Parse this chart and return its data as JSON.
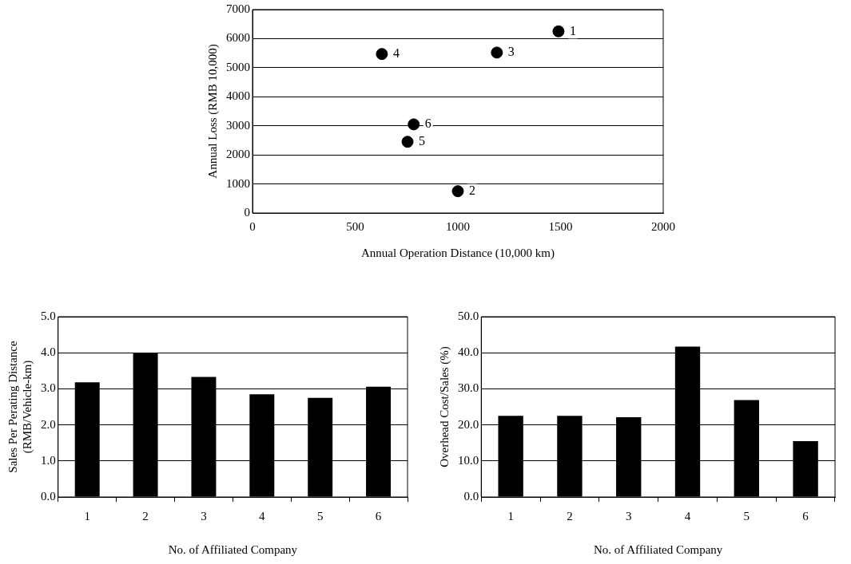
{
  "chart_data": [
    {
      "type": "scatter",
      "xlabel": "Annual Operation Distance (10,000 km)",
      "ylabel": "Annual Loss (RMB 10,000)",
      "x": [
        1490,
        1000,
        1190,
        630,
        755,
        785
      ],
      "values": [
        6250,
        750,
        5520,
        5470,
        2450,
        3050
      ],
      "color": "#000000",
      "marker": "circle",
      "xlim": [
        0,
        2000
      ],
      "xticks": [
        0,
        500,
        1000,
        1500,
        2000
      ],
      "ylim": [
        0,
        7000
      ],
      "yticks": [
        0,
        1000,
        2000,
        3000,
        4000,
        5000,
        6000,
        7000
      ],
      "grid": "y",
      "annotations": [
        {
          "text": "1",
          "x": 1490,
          "y": 6250
        },
        {
          "text": "2",
          "x": 1000,
          "y": 750
        },
        {
          "text": "3",
          "x": 1190,
          "y": 5520
        },
        {
          "text": "4",
          "x": 630,
          "y": 5470
        },
        {
          "text": "5",
          "x": 755,
          "y": 2450
        },
        {
          "text": "6",
          "x": 785,
          "y": 3050
        }
      ]
    },
    {
      "type": "bar",
      "xlabel": "No. of Affiliated Company",
      "ylabel": "Sales Per Perating Distance\n(RMB/Vehicle-km)",
      "categories": [
        "1",
        "2",
        "3",
        "4",
        "5",
        "6"
      ],
      "values": [
        3.18,
        3.98,
        3.33,
        2.85,
        2.75,
        3.06
      ],
      "color": "#000000",
      "ylim": [
        0,
        5
      ],
      "yticks": [
        {
          "value": 0,
          "label": "0.0"
        },
        {
          "value": 1,
          "label": "1.0"
        },
        {
          "value": 2,
          "label": "2.0"
        },
        {
          "value": 3,
          "label": "3.0"
        },
        {
          "value": 4,
          "label": "4.0"
        },
        {
          "value": 5,
          "label": "5.0"
        }
      ],
      "grid": "y"
    },
    {
      "type": "bar",
      "xlabel": "No. of Affiliated Company",
      "ylabel": "Overhead Cost/Sales (%)",
      "categories": [
        "1",
        "2",
        "3",
        "4",
        "5",
        "6"
      ],
      "values": [
        22.5,
        22.5,
        22.1,
        41.7,
        26.9,
        15.5
      ],
      "color": "#000000",
      "ylim": [
        0,
        50
      ],
      "yticks": [
        {
          "value": 0,
          "label": "0.0"
        },
        {
          "value": 10,
          "label": "10.0"
        },
        {
          "value": 20,
          "label": "20.0"
        },
        {
          "value": 30,
          "label": "30.0"
        },
        {
          "value": 40,
          "label": "40.0"
        },
        {
          "value": 50,
          "label": "50.0"
        }
      ],
      "grid": "y"
    }
  ]
}
